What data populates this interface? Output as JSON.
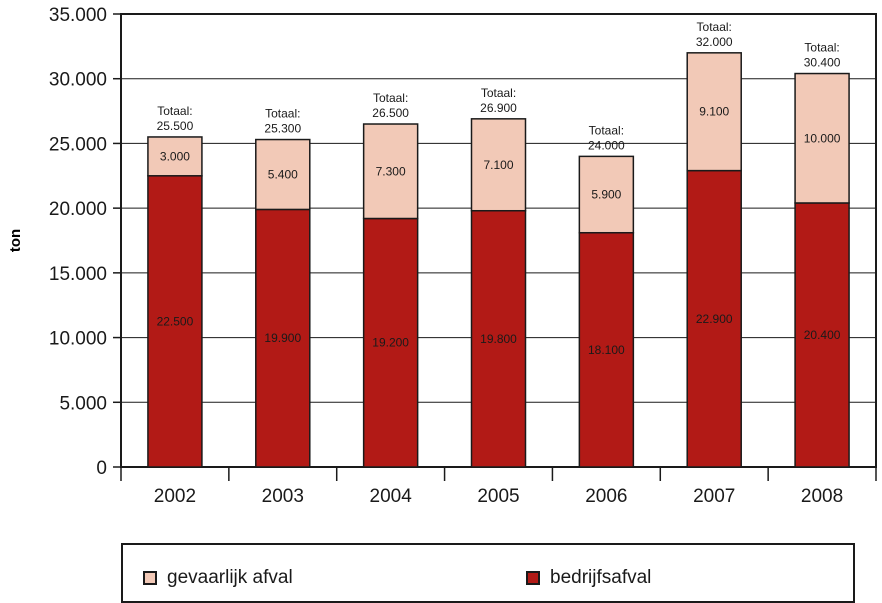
{
  "chart_data": {
    "type": "bar",
    "stacked": true,
    "ylabel": "ton",
    "xlabel": "",
    "ylim": [
      0,
      35000
    ],
    "yticks": [
      0,
      5000,
      10000,
      15000,
      20000,
      25000,
      30000,
      35000
    ],
    "ytick_labels": [
      "0",
      "5.000",
      "10.000",
      "15.000",
      "20.000",
      "25.000",
      "30.000",
      "35.000"
    ],
    "grid": true,
    "legend_position": "bottom",
    "categories": [
      "2002",
      "2003",
      "2004",
      "2005",
      "2006",
      "2007",
      "2008"
    ],
    "series": [
      {
        "name": "bedrijfsafval",
        "color": "#b21a16",
        "values": [
          22500,
          19900,
          19200,
          19800,
          18100,
          22900,
          20400
        ],
        "labels": [
          "22.500",
          "19.900",
          "19.200",
          "19.800",
          "18.100",
          "22.900",
          "20.400"
        ]
      },
      {
        "name": "gevaarlijk afval",
        "color": "#f2c9b7",
        "values": [
          3000,
          5400,
          7300,
          7100,
          5900,
          9100,
          10000
        ],
        "labels": [
          "3.000",
          "5.400",
          "7.300",
          "7.100",
          "5.900",
          "9.100",
          "10.000"
        ]
      }
    ],
    "totals": {
      "prefix": "Totaal:",
      "values": [
        25500,
        25300,
        26500,
        26900,
        24000,
        32000,
        30400
      ],
      "labels": [
        "25.500",
        "25.300",
        "26.500",
        "26.900",
        "24.000",
        "32.000",
        "30.400"
      ]
    }
  },
  "legend": {
    "items": [
      {
        "label": "gevaarlijk afval",
        "color": "#f2c9b7"
      },
      {
        "label": "bedrijfsafval",
        "color": "#b21a16"
      }
    ]
  }
}
